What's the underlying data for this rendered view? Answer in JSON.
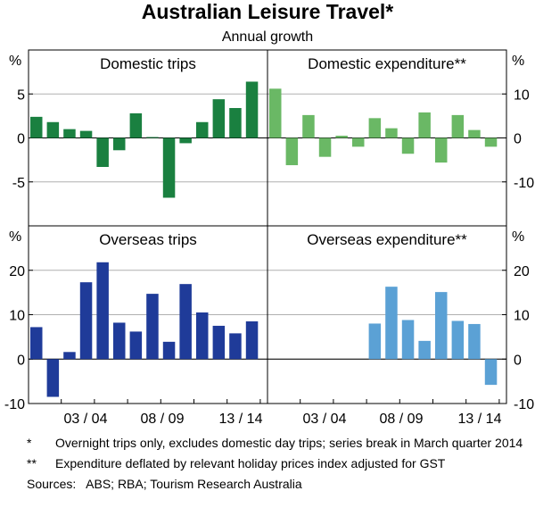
{
  "title": "Australian Leisure Travel*",
  "subtitle": "Annual growth",
  "chart_data": [
    {
      "type": "bar",
      "title": "Domestic trips",
      "unit": "%",
      "axis": "left",
      "ylim": [
        -10,
        10
      ],
      "yticks": [
        "5",
        "0",
        "-5"
      ],
      "color": "#1a8040",
      "x_tick_labels": [
        "03 / 04",
        "08 / 09",
        "13 / 14"
      ],
      "values": [
        2.4,
        1.8,
        1.0,
        0.8,
        -3.3,
        -1.4,
        2.8,
        0.1,
        -6.8,
        -0.6,
        1.8,
        4.4,
        3.4,
        6.4
      ]
    },
    {
      "type": "bar",
      "title": "Domestic expenditure**",
      "unit": "%",
      "axis": "right",
      "ylim": [
        -20,
        20
      ],
      "yticks": [
        "10",
        "0",
        "-10"
      ],
      "color": "#6ab865",
      "x_tick_labels": [
        "03 / 04",
        "08 / 09",
        "13 / 14"
      ],
      "values": [
        11.2,
        -6.2,
        5.2,
        -4.3,
        0.5,
        -2.0,
        4.5,
        2.2,
        -3.6,
        5.8,
        -5.6,
        5.2,
        1.8,
        -2.0
      ]
    },
    {
      "type": "bar",
      "title": "Overseas trips",
      "unit": "%",
      "axis": "left",
      "ylim": [
        -10,
        30
      ],
      "yticks": [
        "20",
        "10",
        "0",
        "-10"
      ],
      "color": "#1f3b99",
      "x_tick_labels": [
        "03 / 04",
        "08 / 09",
        "13 / 14"
      ],
      "values": [
        7.2,
        -8.5,
        1.6,
        17.3,
        21.8,
        8.2,
        6.2,
        14.7,
        3.9,
        16.9,
        10.5,
        7.5,
        5.8,
        8.5
      ]
    },
    {
      "type": "bar",
      "title": "Overseas expenditure**",
      "unit": "%",
      "axis": "right",
      "ylim": [
        -10,
        30
      ],
      "yticks": [
        "20",
        "10",
        "0",
        "-10"
      ],
      "color": "#5ba1d5",
      "x_tick_labels": [
        "03 / 04",
        "08 / 09",
        "13 / 14"
      ],
      "values": [
        null,
        null,
        null,
        null,
        null,
        null,
        8.0,
        16.3,
        8.8,
        4.1,
        15.1,
        8.6,
        7.9,
        -5.8
      ]
    }
  ],
  "notes": [
    {
      "mark": "*",
      "text": "Overnight trips only, excludes domestic day trips; series break in March quarter 2014"
    },
    {
      "mark": "**",
      "text": "Expenditure deflated by relevant holiday prices index adjusted for GST"
    }
  ],
  "sources": "Sources:   ABS; RBA; Tourism Research Australia"
}
